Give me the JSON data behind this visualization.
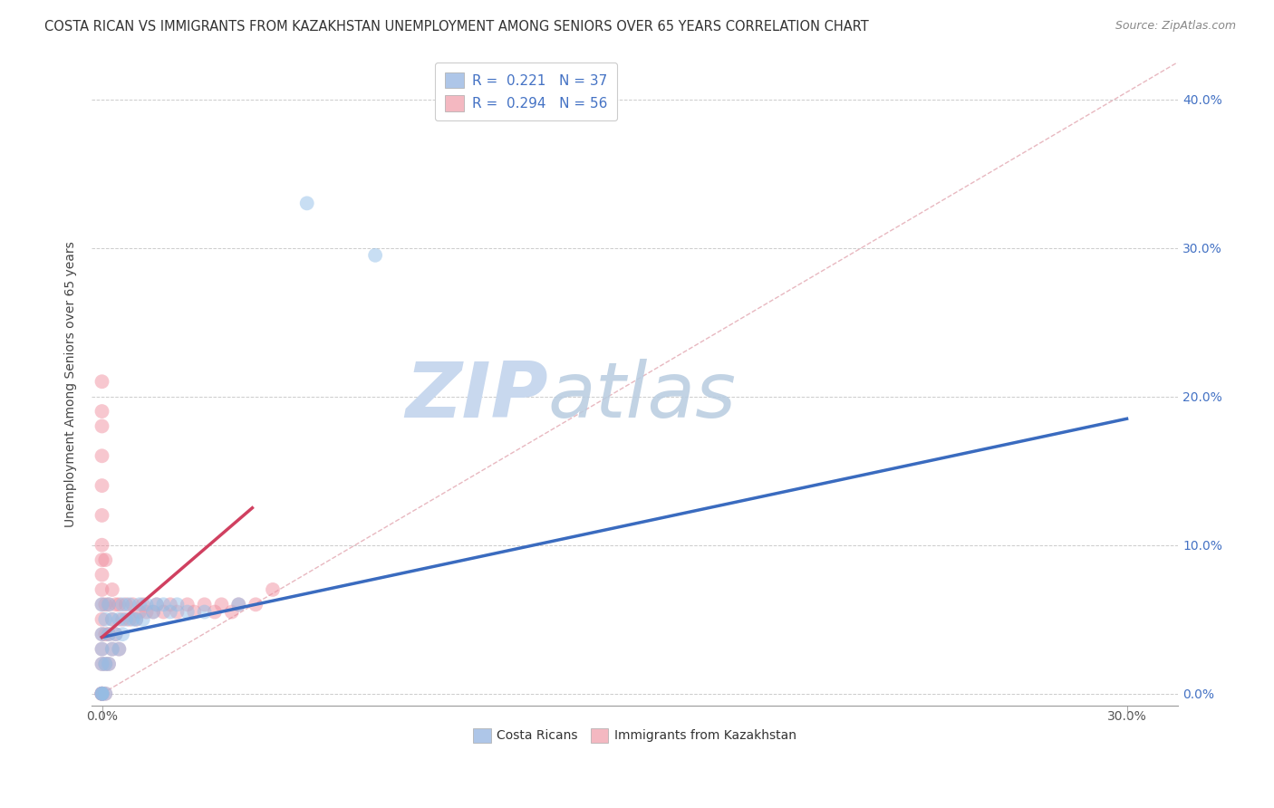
{
  "title": "COSTA RICAN VS IMMIGRANTS FROM KAZAKHSTAN UNEMPLOYMENT AMONG SENIORS OVER 65 YEARS CORRELATION CHART",
  "source": "Source: ZipAtlas.com",
  "ylabel_label": "Unemployment Among Seniors over 65 years",
  "xlim": [
    -0.003,
    0.315
  ],
  "ylim": [
    -0.008,
    0.425
  ],
  "xticks": [
    0.0,
    0.3
  ],
  "yticks": [
    0.0,
    0.1,
    0.2,
    0.3,
    0.4
  ],
  "xtick_labels": [
    "0.0%",
    "30.0%"
  ],
  "ytick_labels_right": [
    "0.0%",
    "10.0%",
    "20.0%",
    "30.0%",
    "40.0%"
  ],
  "legend_top": [
    {
      "label": "R =  0.221   N = 37",
      "color": "#aec6e8"
    },
    {
      "label": "R =  0.294   N = 56",
      "color": "#f4b8c1"
    }
  ],
  "legend_bottom": [
    {
      "label": "Costa Ricans",
      "color": "#aec6e8"
    },
    {
      "label": "Immigrants from Kazakhstan",
      "color": "#f4b8c1"
    }
  ],
  "watermark_zip": "ZIP",
  "watermark_atlas": "atlas",
  "costa_rican_x": [
    0.0,
    0.0,
    0.0,
    0.0,
    0.0,
    0.0,
    0.0,
    0.001,
    0.001,
    0.001,
    0.002,
    0.002,
    0.002,
    0.003,
    0.003,
    0.004,
    0.005,
    0.005,
    0.006,
    0.006,
    0.007,
    0.008,
    0.009,
    0.01,
    0.011,
    0.012,
    0.013,
    0.015,
    0.016,
    0.018,
    0.02,
    0.022,
    0.025,
    0.03,
    0.04,
    0.06,
    0.08
  ],
  "costa_rican_y": [
    0.0,
    0.0,
    0.0,
    0.02,
    0.03,
    0.04,
    0.06,
    0.0,
    0.02,
    0.05,
    0.02,
    0.04,
    0.06,
    0.03,
    0.05,
    0.04,
    0.03,
    0.05,
    0.04,
    0.06,
    0.05,
    0.06,
    0.05,
    0.05,
    0.06,
    0.05,
    0.06,
    0.055,
    0.06,
    0.06,
    0.055,
    0.06,
    0.055,
    0.055,
    0.06,
    0.33,
    0.295
  ],
  "kazakhstan_x": [
    0.0,
    0.0,
    0.0,
    0.0,
    0.0,
    0.0,
    0.0,
    0.0,
    0.0,
    0.0,
    0.0,
    0.0,
    0.0,
    0.0,
    0.0,
    0.0,
    0.0,
    0.0,
    0.0,
    0.001,
    0.001,
    0.001,
    0.001,
    0.001,
    0.002,
    0.002,
    0.002,
    0.003,
    0.003,
    0.003,
    0.004,
    0.004,
    0.005,
    0.005,
    0.006,
    0.007,
    0.008,
    0.009,
    0.01,
    0.011,
    0.012,
    0.013,
    0.015,
    0.016,
    0.018,
    0.02,
    0.022,
    0.025,
    0.027,
    0.03,
    0.033,
    0.035,
    0.038,
    0.04,
    0.045,
    0.05
  ],
  "kazakhstan_y": [
    0.0,
    0.0,
    0.0,
    0.0,
    0.02,
    0.03,
    0.04,
    0.05,
    0.06,
    0.07,
    0.08,
    0.09,
    0.1,
    0.12,
    0.14,
    0.16,
    0.18,
    0.19,
    0.21,
    0.0,
    0.02,
    0.04,
    0.06,
    0.09,
    0.02,
    0.04,
    0.06,
    0.03,
    0.05,
    0.07,
    0.04,
    0.06,
    0.03,
    0.06,
    0.05,
    0.06,
    0.05,
    0.06,
    0.05,
    0.055,
    0.06,
    0.055,
    0.055,
    0.06,
    0.055,
    0.06,
    0.055,
    0.06,
    0.055,
    0.06,
    0.055,
    0.06,
    0.055,
    0.06,
    0.06,
    0.07
  ],
  "blue_line_x": [
    0.0,
    0.3
  ],
  "blue_line_y": [
    0.038,
    0.185
  ],
  "pink_line_x": [
    0.0,
    0.044
  ],
  "pink_line_y": [
    0.038,
    0.125
  ],
  "diag_line_x": [
    0.0,
    0.315
  ],
  "diag_line_y": [
    0.0,
    0.425
  ],
  "scatter_blue_color": "#92bfe8",
  "scatter_pink_color": "#f090a0",
  "line_blue_color": "#3a6bbf",
  "line_pink_color": "#d04060",
  "diag_line_color": "#e8b8c0",
  "title_fontsize": 10.5,
  "source_fontsize": 9,
  "watermark_color": "#c8d8ee",
  "background_color": "#ffffff"
}
